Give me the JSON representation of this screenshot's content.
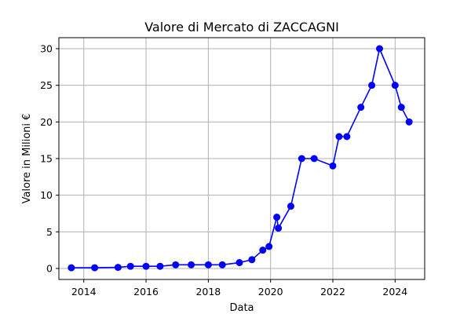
{
  "chart_data": {
    "type": "line",
    "title": "Valore di Mercato di ZACCAGNI",
    "xlabel": "Data",
    "ylabel": "Valore in Milioni €",
    "x_ticks": [
      2014,
      2016,
      2018,
      2020,
      2022,
      2024
    ],
    "y_ticks": [
      0,
      5,
      10,
      15,
      20,
      25,
      30
    ],
    "xlim": [
      2013.2,
      2024.95
    ],
    "ylim": [
      -1.5,
      31.5
    ],
    "grid": true,
    "series": [
      {
        "color": "#0000ff",
        "marker": "circle",
        "points": [
          {
            "x": 2013.6,
            "y": 0.1
          },
          {
            "x": 2014.35,
            "y": 0.1
          },
          {
            "x": 2015.1,
            "y": 0.15
          },
          {
            "x": 2015.5,
            "y": 0.3
          },
          {
            "x": 2016.0,
            "y": 0.3
          },
          {
            "x": 2016.45,
            "y": 0.3
          },
          {
            "x": 2016.95,
            "y": 0.5
          },
          {
            "x": 2017.45,
            "y": 0.5
          },
          {
            "x": 2018.0,
            "y": 0.5
          },
          {
            "x": 2018.45,
            "y": 0.5
          },
          {
            "x": 2019.0,
            "y": 0.8
          },
          {
            "x": 2019.4,
            "y": 1.2
          },
          {
            "x": 2019.75,
            "y": 2.5
          },
          {
            "x": 2019.95,
            "y": 3.0
          },
          {
            "x": 2020.2,
            "y": 7.0
          },
          {
            "x": 2020.25,
            "y": 5.5
          },
          {
            "x": 2020.65,
            "y": 8.5
          },
          {
            "x": 2021.0,
            "y": 15.0
          },
          {
            "x": 2021.4,
            "y": 15.0
          },
          {
            "x": 2022.0,
            "y": 14.0
          },
          {
            "x": 2022.2,
            "y": 18.0
          },
          {
            "x": 2022.45,
            "y": 18.0
          },
          {
            "x": 2022.9,
            "y": 22.0
          },
          {
            "x": 2023.25,
            "y": 25.0
          },
          {
            "x": 2023.5,
            "y": 30.0
          },
          {
            "x": 2024.0,
            "y": 25.0
          },
          {
            "x": 2024.2,
            "y": 22.0
          },
          {
            "x": 2024.45,
            "y": 20.0
          }
        ]
      }
    ]
  }
}
